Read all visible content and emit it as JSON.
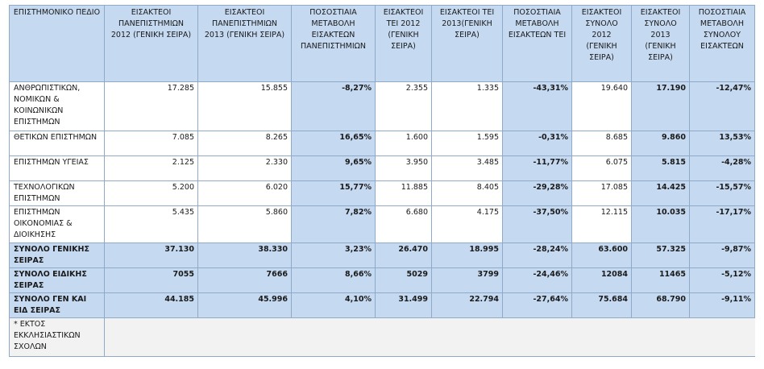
{
  "table": {
    "headers": [
      "ΕΠΙΣΤΗΜΟΝΙΚΟ ΠΕΔΙΟ",
      "ΕΙΣΑΚΤΕΟΙ ΠΑΝΕΠΙΣΤΗΜΙΩΝ 2012 (ΓΕΝΙΚΗ ΣΕΙΡΑ)",
      "ΕΙΣΑΚΤΕΟΙ ΠΑΝΕΠΙΣΤΗΜΙΩΝ 2013 (ΓΕΝΙΚΗ ΣΕΙΡΑ)",
      "ΠΟΣΟΣΤΙΑΙΑ ΜΕΤΑΒΟΛΗ ΕΙΣΑΚΤΕΩΝ ΠΑΝΕΠΙΣΤΗΜΙΩΝ",
      "ΕΙΣΑΚΤΕΟΙ ΤΕΙ 2012 (ΓΕΝΙΚΗ ΣΕΙΡΑ)",
      "ΕΙΣΑΚΤΕΟΙ ΤΕΙ 2013(ΓΕΝΙΚΗ ΣΕΙΡΑ)",
      "ΠΟΣΟΣΤΙΑΙΑ ΜΕΤΑΒΟΛΗ ΕΙΣΑΚΤΕΩΝ ΤΕΙ",
      "ΕΙΣΑΚΤΕΟΙ ΣΥΝΟΛΟ 2012 (ΓΕΝΙΚΗ ΣΕΙΡΑ)",
      "ΕΙΣΑΚΤΕΟΙ ΣΥΝΟΛΟ 2013 (ΓΕΝΙΚΗ ΣΕΙΡΑ)",
      "ΠΟΣΟΣΤΙΑΙΑ ΜΕΤΑΒΟΛΗ ΣΥΝΟΛΟΥ ΕΙΣΑΚΤΕΩΝ"
    ],
    "rows": [
      [
        "ΑΝΘΡΩΠΙΣΤΙΚΩΝ, ΝΟΜΙΚΩΝ & ΚΟΙΝΩΝΙΚΩΝ ΕΠΙΣΤΗΜΩΝ",
        "17.285",
        "15.855",
        "-8,27%",
        "2.355",
        "1.335",
        "-43,31%",
        "19.640",
        "17.190",
        "-12,47%"
      ],
      [
        "ΘΕΤΙΚΩΝ ΕΠΙΣΤΗΜΩΝ",
        "7.085",
        "8.265",
        "16,65%",
        "1.600",
        "1.595",
        "-0,31%",
        "8.685",
        "9.860",
        "13,53%"
      ],
      [
        "ΕΠΙΣΤΗΜΩΝ ΥΓΕΙΑΣ",
        "2.125",
        "2.330",
        "9,65%",
        "3.950",
        "3.485",
        "-11,77%",
        "6.075",
        "5.815",
        "-4,28%"
      ],
      [
        "ΤΕΧΝΟΛΟΓΙΚΩΝ ΕΠΙΣΤΗΜΩΝ",
        "5.200",
        "6.020",
        "15,77%",
        "11.885",
        "8.405",
        "-29,28%",
        "17.085",
        "14.425",
        "-15,57%"
      ],
      [
        "ΕΠΙΣΤΗΜΩΝ ΟΙΚΟΝΟΜΙΑΣ & ΔΙΟΙΚΗΣΗΣ",
        "5.435",
        "5.860",
        "7,82%",
        "6.680",
        "4.175",
        "-37,50%",
        "12.115",
        "10.035",
        "-17,17%"
      ]
    ],
    "summary_rows": [
      [
        "ΣΥΝΟΛΟ ΓΕΝΙΚΗΣ ΣΕΙΡΑΣ",
        "37.130",
        "38.330",
        "3,23%",
        "26.470",
        "18.995",
        "-28,24%",
        "63.600",
        "57.325",
        "-9,87%"
      ],
      [
        "ΣΥΝΟΛΟ ΕΙΔΙΚΗΣ ΣΕΙΡΑΣ",
        "7055",
        "7666",
        "8,66%",
        "5029",
        "3799",
        "-24,46%",
        "12084",
        "11465",
        "-5,12%"
      ],
      [
        "ΣΥΝΟΛΟ ΓΕΝ ΚΑΙ ΕΙΔ ΣΕΙΡΑΣ",
        "44.185",
        "45.996",
        "4,10%",
        "31.499",
        "22.794",
        "-27,64%",
        "75.684",
        "68.790",
        "-9,11%"
      ]
    ],
    "footnote": "* ΕΚΤΟΣ ΕΚΚΛΗΣΙΑΣΤΙΚΩΝ ΣΧΟΛΩΝ"
  }
}
